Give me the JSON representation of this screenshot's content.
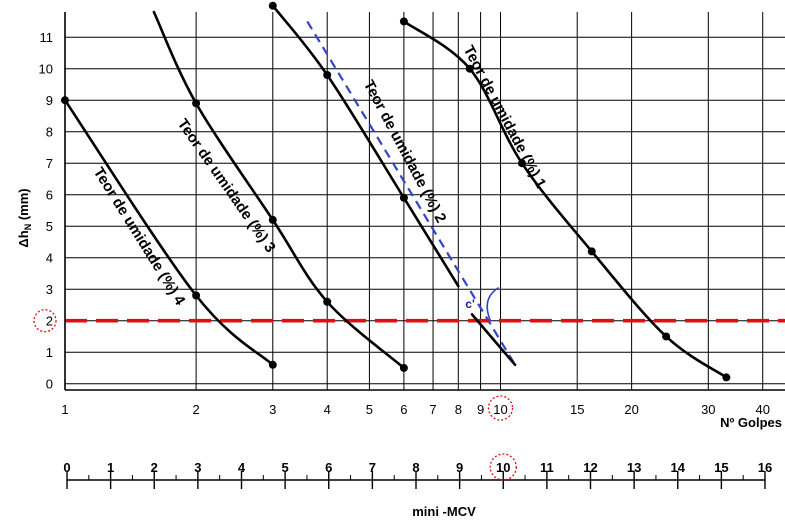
{
  "chart_data": {
    "type": "line",
    "xlabel": "Nº Golpes",
    "ylabel": "Δh",
    "ylabel_sub": "N",
    "ylabel_unit": "(mm)",
    "x_scale": "log",
    "xlim": [
      1,
      45
    ],
    "ylim": [
      -0.2,
      11.8
    ],
    "x_ticks": [
      1,
      2,
      3,
      4,
      5,
      6,
      7,
      8,
      9,
      10,
      15,
      20,
      30,
      40
    ],
    "x_tick_labels": [
      "1",
      "2",
      "3",
      "4",
      "5",
      "6",
      "7",
      "8",
      "9",
      "10",
      "15",
      "20",
      "30",
      "40"
    ],
    "y_ticks": [
      0,
      1,
      2,
      3,
      4,
      5,
      6,
      7,
      8,
      9,
      10,
      11
    ],
    "y_tick_labels": [
      "0",
      "1",
      "2",
      "3",
      "4",
      "5",
      "6",
      "7",
      "8",
      "9",
      "10",
      "11"
    ],
    "grid": true,
    "series": [
      {
        "name": "Teor de umidade (%) 1",
        "points": [
          [
            6,
            11.5
          ],
          [
            8.5,
            10
          ],
          [
            11.2,
            7
          ],
          [
            16.2,
            4.2
          ],
          [
            24,
            1.5
          ],
          [
            33,
            0.2
          ]
        ],
        "markers": [
          [
            6,
            11.5
          ],
          [
            8.5,
            10
          ],
          [
            11.2,
            7
          ],
          [
            16.2,
            4.2
          ],
          [
            24,
            1.5
          ],
          [
            33,
            0.2
          ]
        ],
        "label_at": [
          10,
          8.4
        ],
        "label_rotation": 62
      },
      {
        "name": "Teor de umidade (%) 2",
        "points": [
          [
            3,
            12
          ],
          [
            4,
            9.8
          ],
          [
            6,
            5.9
          ],
          [
            8,
            3.1
          ]
        ],
        "markers": [
          [
            3,
            12
          ],
          [
            4,
            9.8
          ],
          [
            6,
            5.9
          ]
        ],
        "label_at": [
          5.9,
          7.3
        ],
        "label_rotation": 62
      },
      {
        "name": "Teor de umidade (%) 3",
        "points": [
          [
            1.6,
            11.8
          ],
          [
            2,
            8.9
          ],
          [
            3,
            5.2
          ],
          [
            4,
            2.6
          ],
          [
            6,
            0.5
          ]
        ],
        "markers": [
          [
            2,
            8.9
          ],
          [
            3,
            5.2
          ],
          [
            4,
            2.6
          ],
          [
            6,
            0.5
          ]
        ],
        "label_at": [
          2.3,
          6.2
        ],
        "label_rotation": 55
      },
      {
        "name": "Teor de umidade (%) 4",
        "points": [
          [
            1,
            9
          ],
          [
            2,
            2.8
          ],
          [
            3,
            0.6
          ]
        ],
        "markers": [
          [
            1,
            9
          ],
          [
            2,
            2.8
          ],
          [
            3,
            0.6
          ]
        ],
        "label_at": [
          1.45,
          4.6
        ],
        "label_rotation": 58
      },
      {
        "name": "",
        "points": [
          [
            8.6,
            2.2
          ],
          [
            10.8,
            0.6
          ]
        ],
        "markers": []
      }
    ],
    "reference_line_dashed_blue": [
      [
        3.6,
        11.5
      ],
      [
        10.8,
        0.6
      ]
    ],
    "reference_line_dashed_red_y": 2,
    "annotation_label": "c'",
    "annotation_at": [
      8.3,
      2.4
    ],
    "circled_y_value": "2",
    "circled_x_value": "10",
    "mini_mcv_axis": {
      "title": "mini -MCV",
      "ticks": [
        "0",
        "1",
        "2",
        "3",
        "4",
        "5",
        "6",
        "7",
        "8",
        "9",
        "10",
        "11",
        "12",
        "13",
        "14",
        "15",
        "16"
      ],
      "circled": "10"
    },
    "colors": {
      "curve": "#000000",
      "blue_dashed": "#3344cc",
      "red_dashed": "#e01010",
      "circle": "#e01010"
    }
  }
}
